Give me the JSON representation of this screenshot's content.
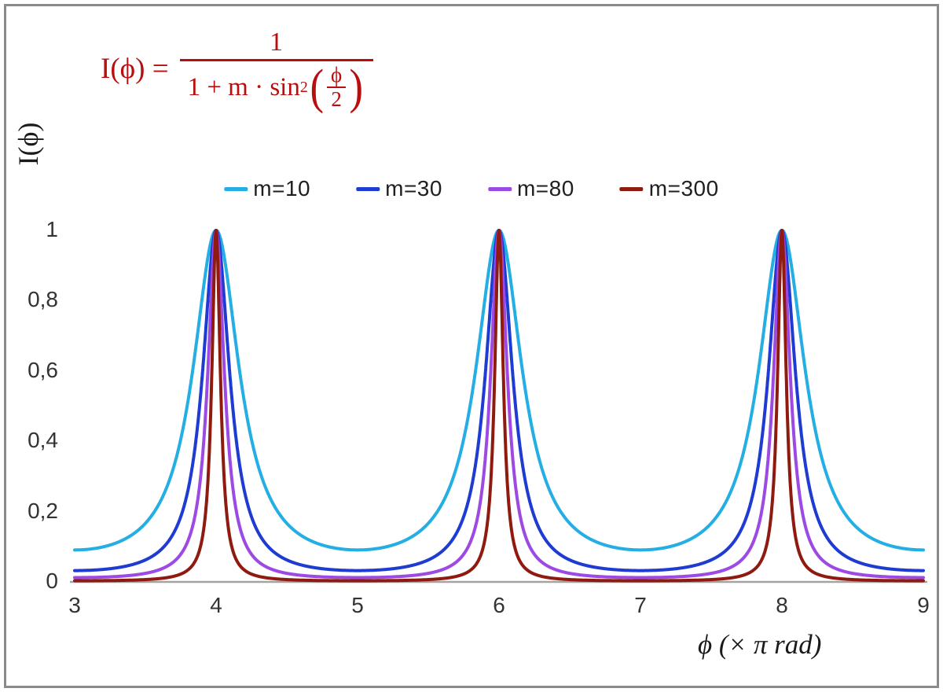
{
  "formula": {
    "lhs": "I(ϕ) =",
    "numerator": "1",
    "den_prefix": "1 + m · sin",
    "den_sup": "2",
    "open_paren": "(",
    "close_paren": ")",
    "inner_num": "ϕ",
    "inner_den": "2",
    "color": "#b80e0e"
  },
  "chart_data": {
    "type": "line",
    "formula": "I(ϕ) = 1 / (1 + m·sin²(ϕ/2))",
    "x_axis": {
      "label": "ϕ  (× π rad)",
      "min": 3,
      "max": 9,
      "unit": "π rad",
      "tick_labels": [
        "3",
        "4",
        "5",
        "6",
        "7",
        "8",
        "9"
      ],
      "tick_values": [
        3,
        4,
        5,
        6,
        7,
        8,
        9
      ]
    },
    "y_axis": {
      "label": "I(ϕ)",
      "min": 0,
      "max": 1,
      "tick_labels": [
        "0",
        "0,2",
        "0,4",
        "0,6",
        "0,8",
        "1"
      ],
      "tick_values": [
        0,
        0.2,
        0.4,
        0.6,
        0.8,
        1
      ]
    },
    "series": [
      {
        "name": "m=10",
        "m": 10,
        "color": "#24aee4"
      },
      {
        "name": "m=30",
        "m": 30,
        "color": "#1e3bd2"
      },
      {
        "name": "m=80",
        "m": 80,
        "color": "#9d49e3"
      },
      {
        "name": "m=300",
        "m": 300,
        "color": "#8e1a10"
      }
    ],
    "peaks_at_x": [
      4,
      6,
      8
    ],
    "peak_value": 1,
    "legend_position": "top-center",
    "grid": false,
    "axis_line_color": "#a3a3a3"
  }
}
